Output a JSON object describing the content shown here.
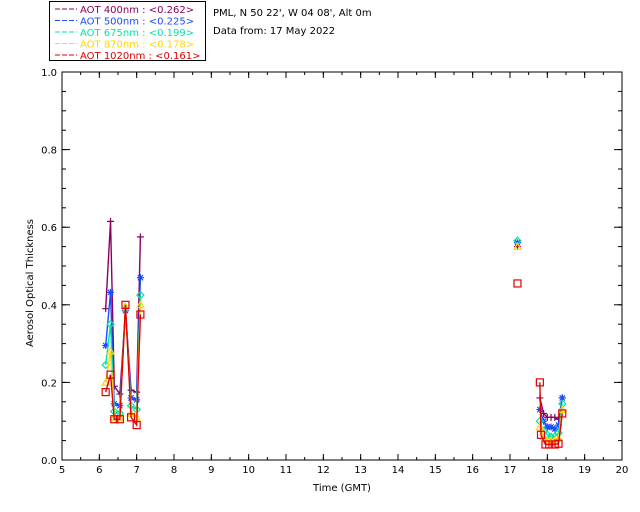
{
  "header": {
    "location": "PML, N 50 22', W 04 08', Alt 0m",
    "date_line": "Data from: 17 May 2022"
  },
  "chart_data": {
    "type": "line",
    "title": "",
    "xlabel": "Time (GMT)",
    "ylabel": "Aerosol Optical Thickness",
    "xlim": [
      5,
      20
    ],
    "ylim": [
      0.0,
      1.0
    ],
    "xticks": [
      "5",
      "6",
      "7",
      "8",
      "9",
      "10",
      "11",
      "12",
      "13",
      "14",
      "15",
      "16",
      "17",
      "18",
      "19",
      "20"
    ],
    "yticks": [
      "0.0",
      "0.2",
      "0.4",
      "0.6",
      "0.8",
      "1.0"
    ],
    "grid": false,
    "legend_position": "top-left, outside plot",
    "series": [
      {
        "name": "AOT  400nm : <0.262>",
        "color": "#8b0064",
        "marker": "plus",
        "segments": [
          [
            [
              6.17,
              0.39
            ],
            [
              6.3,
              0.615
            ],
            [
              6.4,
              0.19
            ],
            [
              6.55,
              0.17
            ],
            [
              6.7,
              0.385
            ],
            [
              6.85,
              0.18
            ],
            [
              7.0,
              0.175
            ],
            [
              7.1,
              0.575
            ]
          ],
          [
            [
              17.2,
              0.55
            ]
          ],
          [
            [
              17.8,
              0.16
            ],
            [
              17.9,
              0.12
            ],
            [
              18.0,
              0.11
            ],
            [
              18.1,
              0.11
            ],
            [
              18.2,
              0.11
            ],
            [
              18.3,
              0.105
            ],
            [
              18.4,
              0.16
            ]
          ]
        ]
      },
      {
        "name": "AOT  500nm : <0.225>",
        "color": "#1a4bff",
        "marker": "asterisk",
        "segments": [
          [
            [
              6.17,
              0.295
            ],
            [
              6.3,
              0.432
            ],
            [
              6.4,
              0.145
            ],
            [
              6.55,
              0.14
            ],
            [
              6.7,
              0.385
            ],
            [
              6.85,
              0.16
            ],
            [
              7.0,
              0.155
            ],
            [
              7.1,
              0.47
            ]
          ],
          [
            [
              17.2,
              0.56
            ]
          ],
          [
            [
              17.8,
              0.13
            ],
            [
              17.9,
              0.1
            ],
            [
              18.0,
              0.085
            ],
            [
              18.1,
              0.085
            ],
            [
              18.2,
              0.08
            ],
            [
              18.3,
              0.09
            ],
            [
              18.4,
              0.16
            ]
          ]
        ]
      },
      {
        "name": "AOT  675nm : <0.199>",
        "color": "#00e5a8",
        "marker": "diamond",
        "segments": [
          [
            [
              6.17,
              0.245
            ],
            [
              6.3,
              0.35
            ],
            [
              6.4,
              0.125
            ],
            [
              6.55,
              0.12
            ],
            [
              6.7,
              0.39
            ],
            [
              6.85,
              0.14
            ],
            [
              7.0,
              0.13
            ],
            [
              7.1,
              0.425
            ]
          ],
          [
            [
              17.2,
              0.565
            ]
          ],
          [
            [
              17.8,
              0.1
            ],
            [
              17.9,
              0.075
            ],
            [
              18.0,
              0.065
            ],
            [
              18.1,
              0.06
            ],
            [
              18.2,
              0.06
            ],
            [
              18.3,
              0.07
            ],
            [
              18.4,
              0.145
            ]
          ]
        ]
      },
      {
        "name": "AOT  870nm : <0.178>",
        "color": "#ffd700",
        "marker": "triangle",
        "segments": [
          [
            [
              6.17,
              0.2
            ],
            [
              6.3,
              0.28
            ],
            [
              6.4,
              0.11
            ],
            [
              6.55,
              0.11
            ],
            [
              6.7,
              0.395
            ],
            [
              6.85,
              0.12
            ],
            [
              7.0,
              0.11
            ],
            [
              7.1,
              0.4
            ]
          ],
          [
            [
              17.2,
              0.55
            ]
          ],
          [
            [
              17.8,
              0.085
            ],
            [
              17.9,
              0.06
            ],
            [
              18.0,
              0.05
            ],
            [
              18.1,
              0.05
            ],
            [
              18.2,
              0.05
            ],
            [
              18.3,
              0.055
            ],
            [
              18.4,
              0.13
            ]
          ]
        ]
      },
      {
        "name": "AOT 1020nm : <0.161>",
        "color": "#e00000",
        "marker": "square",
        "segments": [
          [
            [
              6.17,
              0.175
            ],
            [
              6.3,
              0.22
            ],
            [
              6.4,
              0.105
            ],
            [
              6.55,
              0.105
            ],
            [
              6.7,
              0.4
            ],
            [
              6.85,
              0.11
            ],
            [
              7.0,
              0.09
            ],
            [
              7.1,
              0.375
            ]
          ],
          [
            [
              17.2,
              0.455
            ]
          ],
          [
            [
              17.8,
              0.2
            ],
            [
              17.83,
              0.065
            ],
            [
              17.95,
              0.04
            ],
            [
              18.05,
              0.04
            ],
            [
              18.2,
              0.04
            ],
            [
              18.3,
              0.042
            ],
            [
              18.4,
              0.12
            ]
          ]
        ]
      }
    ]
  }
}
